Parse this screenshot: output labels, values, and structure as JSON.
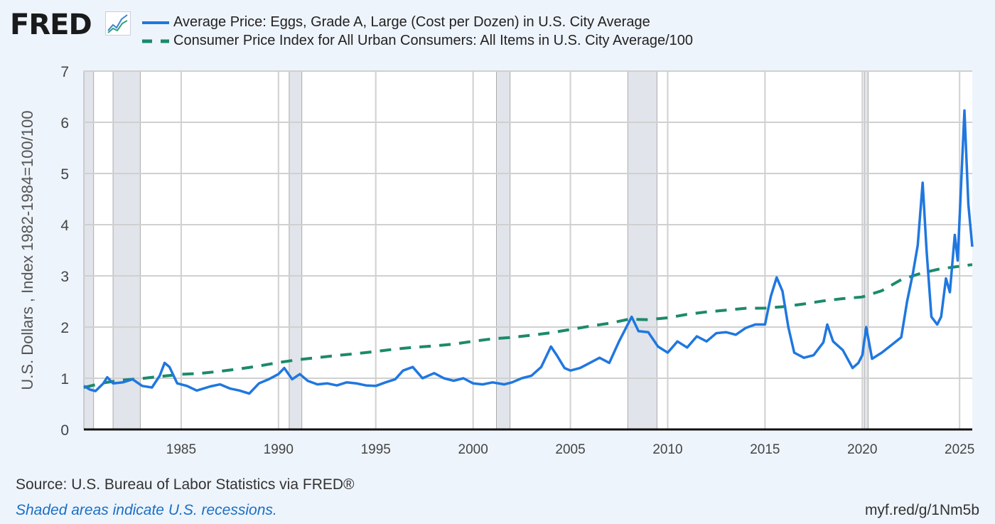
{
  "header": {
    "logo": "FRED",
    "logo_icon": "line-chart-icon"
  },
  "colors": {
    "eggs": "#1f77e0",
    "cpi": "#1b8a6b",
    "recession": "#e1e4ea",
    "grid": "#d0d0d0",
    "background": "#eef4fc"
  },
  "footer": {
    "source": "Source: U.S. Bureau of Labor Statistics via FRED®",
    "note": "Shaded areas indicate U.S. recessions.",
    "link": "myf.red/g/1Nm5b"
  },
  "chart_data": {
    "type": "line",
    "title": "",
    "xlabel": "",
    "ylabel": "U.S. Dollars , Index 1982-1984=100/100",
    "xlim": [
      1980.0,
      2025.65
    ],
    "ylim": [
      0,
      7
    ],
    "grid": true,
    "legend_position": "top",
    "y_ticks": [
      0,
      1,
      2,
      3,
      4,
      5,
      6,
      7
    ],
    "x_ticks": [
      1985,
      1990,
      1995,
      2000,
      2005,
      2010,
      2015,
      2020,
      2025
    ],
    "recessions": [
      [
        1980.0,
        1980.5
      ],
      [
        1981.5,
        1982.9
      ],
      [
        1990.55,
        1991.2
      ],
      [
        2001.2,
        2001.9
      ],
      [
        2007.95,
        2009.45
      ],
      [
        2020.1,
        2020.3
      ]
    ],
    "series": [
      {
        "name": "Average Price: Eggs, Grade A, Large (Cost per Dozen) in U.S. City Average",
        "style": "solid",
        "points": [
          [
            1980.0,
            0.85
          ],
          [
            1980.3,
            0.78
          ],
          [
            1980.6,
            0.75
          ],
          [
            1981.0,
            0.9
          ],
          [
            1981.2,
            1.02
          ],
          [
            1981.5,
            0.9
          ],
          [
            1982.0,
            0.92
          ],
          [
            1982.5,
            0.98
          ],
          [
            1983.0,
            0.85
          ],
          [
            1983.5,
            0.82
          ],
          [
            1983.9,
            1.05
          ],
          [
            1984.15,
            1.3
          ],
          [
            1984.4,
            1.22
          ],
          [
            1984.8,
            0.9
          ],
          [
            1985.3,
            0.85
          ],
          [
            1985.8,
            0.76
          ],
          [
            1986.5,
            0.84
          ],
          [
            1987.0,
            0.88
          ],
          [
            1987.5,
            0.8
          ],
          [
            1988.0,
            0.76
          ],
          [
            1988.5,
            0.7
          ],
          [
            1989.0,
            0.9
          ],
          [
            1989.5,
            0.98
          ],
          [
            1990.0,
            1.08
          ],
          [
            1990.3,
            1.2
          ],
          [
            1990.7,
            0.98
          ],
          [
            1991.1,
            1.08
          ],
          [
            1991.5,
            0.95
          ],
          [
            1992.0,
            0.88
          ],
          [
            1992.5,
            0.9
          ],
          [
            1993.0,
            0.86
          ],
          [
            1993.5,
            0.92
          ],
          [
            1994.0,
            0.9
          ],
          [
            1994.5,
            0.86
          ],
          [
            1995.0,
            0.85
          ],
          [
            1995.5,
            0.92
          ],
          [
            1996.0,
            0.98
          ],
          [
            1996.4,
            1.15
          ],
          [
            1996.9,
            1.22
          ],
          [
            1997.4,
            1.0
          ],
          [
            1998.0,
            1.1
          ],
          [
            1998.5,
            1.0
          ],
          [
            1999.0,
            0.95
          ],
          [
            1999.5,
            1.0
          ],
          [
            2000.0,
            0.9
          ],
          [
            2000.5,
            0.88
          ],
          [
            2001.0,
            0.92
          ],
          [
            2001.6,
            0.88
          ],
          [
            2002.0,
            0.92
          ],
          [
            2002.5,
            1.0
          ],
          [
            2003.0,
            1.05
          ],
          [
            2003.5,
            1.22
          ],
          [
            2004.0,
            1.62
          ],
          [
            2004.3,
            1.45
          ],
          [
            2004.7,
            1.2
          ],
          [
            2005.0,
            1.15
          ],
          [
            2005.5,
            1.2
          ],
          [
            2006.0,
            1.3
          ],
          [
            2006.5,
            1.4
          ],
          [
            2007.0,
            1.3
          ],
          [
            2007.5,
            1.72
          ],
          [
            2008.15,
            2.2
          ],
          [
            2008.5,
            1.92
          ],
          [
            2009.0,
            1.9
          ],
          [
            2009.5,
            1.62
          ],
          [
            2010.0,
            1.5
          ],
          [
            2010.5,
            1.72
          ],
          [
            2011.0,
            1.6
          ],
          [
            2011.5,
            1.82
          ],
          [
            2012.0,
            1.72
          ],
          [
            2012.5,
            1.88
          ],
          [
            2013.0,
            1.9
          ],
          [
            2013.5,
            1.85
          ],
          [
            2014.0,
            1.98
          ],
          [
            2014.5,
            2.05
          ],
          [
            2015.0,
            2.05
          ],
          [
            2015.3,
            2.6
          ],
          [
            2015.6,
            2.97
          ],
          [
            2015.9,
            2.7
          ],
          [
            2016.2,
            2.0
          ],
          [
            2016.5,
            1.5
          ],
          [
            2017.0,
            1.4
          ],
          [
            2017.5,
            1.45
          ],
          [
            2018.0,
            1.7
          ],
          [
            2018.2,
            2.05
          ],
          [
            2018.5,
            1.72
          ],
          [
            2019.0,
            1.55
          ],
          [
            2019.5,
            1.2
          ],
          [
            2019.8,
            1.3
          ],
          [
            2020.0,
            1.45
          ],
          [
            2020.2,
            2.0
          ],
          [
            2020.5,
            1.38
          ],
          [
            2021.0,
            1.5
          ],
          [
            2021.5,
            1.65
          ],
          [
            2022.0,
            1.8
          ],
          [
            2022.3,
            2.5
          ],
          [
            2022.6,
            3.05
          ],
          [
            2022.85,
            3.6
          ],
          [
            2023.1,
            4.82
          ],
          [
            2023.3,
            3.5
          ],
          [
            2023.55,
            2.2
          ],
          [
            2023.85,
            2.05
          ],
          [
            2024.05,
            2.2
          ],
          [
            2024.3,
            2.95
          ],
          [
            2024.5,
            2.68
          ],
          [
            2024.75,
            3.8
          ],
          [
            2024.9,
            3.3
          ],
          [
            2025.25,
            6.23
          ],
          [
            2025.45,
            4.4
          ],
          [
            2025.65,
            3.57
          ]
        ]
      },
      {
        "name": "Consumer Price Index for All Urban Consumers: All Items in U.S. City Average/100",
        "style": "dashed",
        "points": [
          [
            1980,
            0.82
          ],
          [
            1981,
            0.91
          ],
          [
            1982,
            0.965
          ],
          [
            1983,
            0.996
          ],
          [
            1984,
            1.039
          ],
          [
            1985,
            1.076
          ],
          [
            1986,
            1.096
          ],
          [
            1987,
            1.136
          ],
          [
            1988,
            1.183
          ],
          [
            1989,
            1.24
          ],
          [
            1990,
            1.307
          ],
          [
            1991,
            1.362
          ],
          [
            1992,
            1.403
          ],
          [
            1993,
            1.445
          ],
          [
            1994,
            1.482
          ],
          [
            1995,
            1.524
          ],
          [
            1996,
            1.569
          ],
          [
            1997,
            1.605
          ],
          [
            1998,
            1.63
          ],
          [
            1999,
            1.666
          ],
          [
            2000,
            1.722
          ],
          [
            2001,
            1.771
          ],
          [
            2002,
            1.799
          ],
          [
            2003,
            1.84
          ],
          [
            2004,
            1.889
          ],
          [
            2005,
            1.953
          ],
          [
            2006,
            2.016
          ],
          [
            2007,
            2.073
          ],
          [
            2008,
            2.153
          ],
          [
            2009,
            2.145
          ],
          [
            2010,
            2.181
          ],
          [
            2011,
            2.249
          ],
          [
            2012,
            2.296
          ],
          [
            2013,
            2.33
          ],
          [
            2014,
            2.367
          ],
          [
            2015,
            2.37
          ],
          [
            2016,
            2.4
          ],
          [
            2017,
            2.451
          ],
          [
            2018,
            2.511
          ],
          [
            2019,
            2.556
          ],
          [
            2020,
            2.588
          ],
          [
            2021,
            2.71
          ],
          [
            2022,
            2.926
          ],
          [
            2023,
            3.048
          ],
          [
            2024,
            3.138
          ],
          [
            2025.65,
            3.22
          ]
        ]
      }
    ]
  }
}
